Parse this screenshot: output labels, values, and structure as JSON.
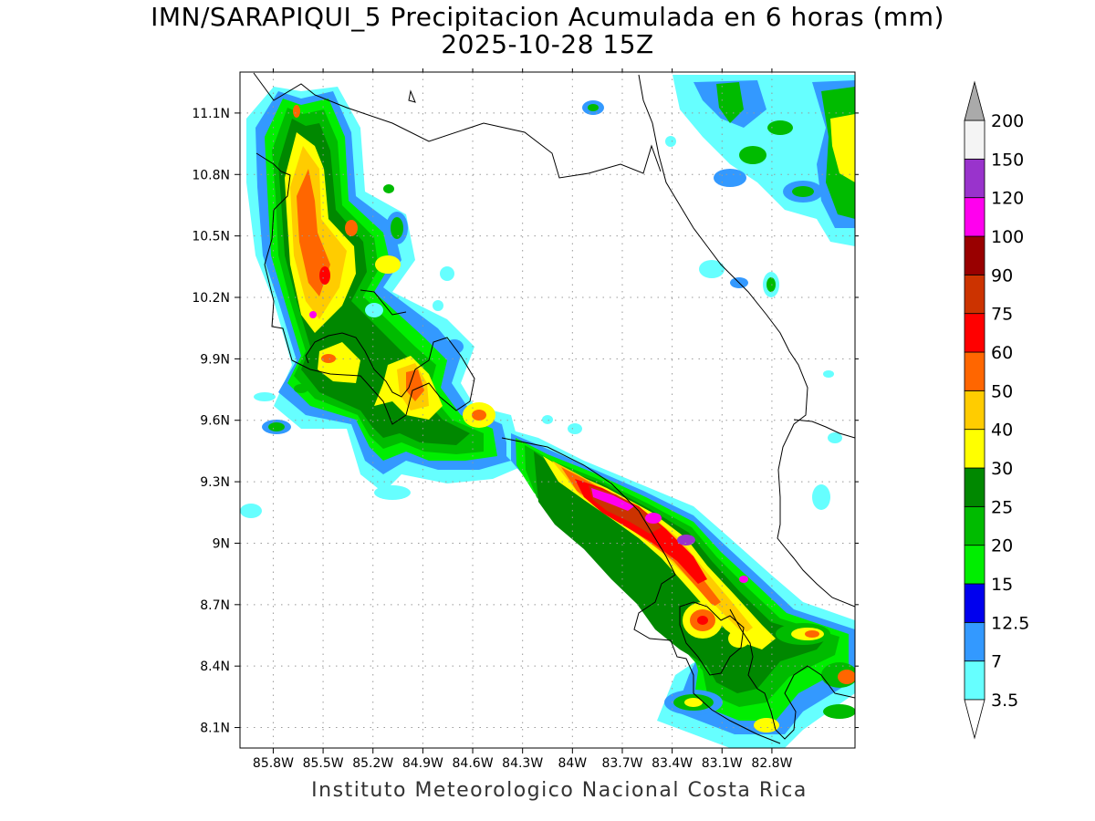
{
  "title": {
    "line1": "IMN/SARAPIQUI_5 Precipitacion Acumulada en 6 horas (mm)",
    "line2": "2025-10-28 15Z"
  },
  "credit": "Instituto Meteorologico Nacional Costa Rica",
  "map": {
    "longitude_range": [
      -86.0,
      -82.3
    ],
    "latitude_range": [
      8.0,
      11.3
    ],
    "lon_ticks": [
      "85.8W",
      "85.5W",
      "85.2W",
      "84.9W",
      "84.6W",
      "84.3W",
      "84W",
      "83.7W",
      "83.4W",
      "83.1W",
      "82.8W"
    ],
    "lon_tick_values": [
      -85.8,
      -85.5,
      -85.2,
      -84.9,
      -84.6,
      -84.3,
      -84.0,
      -83.7,
      -83.4,
      -83.1,
      -82.8
    ],
    "lat_ticks": [
      "11.1N",
      "10.8N",
      "10.5N",
      "10.2N",
      "9.9N",
      "9.6N",
      "9.3N",
      "9N",
      "8.7N",
      "8.4N",
      "8.1N"
    ],
    "lat_tick_values": [
      11.1,
      10.8,
      10.5,
      10.2,
      9.9,
      9.6,
      9.3,
      9.0,
      8.7,
      8.4,
      8.1
    ],
    "grid": "dotted"
  },
  "colorbar": {
    "levels": [
      "3.5",
      "7",
      "12.5",
      "15",
      "20",
      "25",
      "30",
      "40",
      "50",
      "60",
      "75",
      "90",
      "100",
      "120",
      "150",
      "200"
    ],
    "colors": [
      "#66ffff",
      "#3399ff",
      "#0000ee",
      "#00ee00",
      "#00bb00",
      "#008800",
      "#ffff00",
      "#ffcc00",
      "#ff6600",
      "#ff0000",
      "#cc3300",
      "#990000",
      "#ff00ee",
      "#9933cc",
      "#f4f4f4",
      "#aaaaaa"
    ]
  }
}
